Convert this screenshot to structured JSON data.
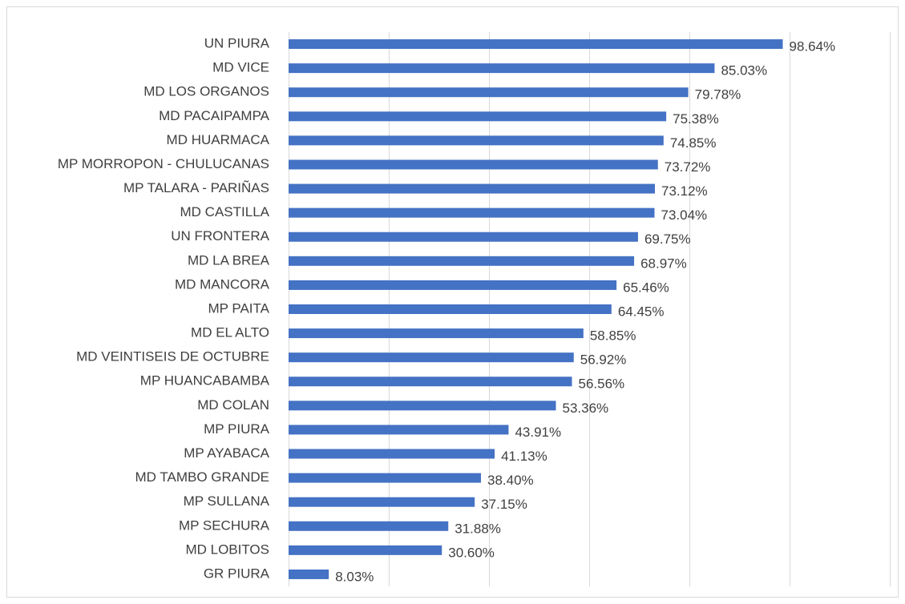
{
  "chart_data": {
    "type": "bar",
    "orientation": "horizontal",
    "categories": [
      "UN PIURA",
      "MD VICE",
      "MD LOS ORGANOS",
      "MD PACAIPAMPA",
      "MD HUARMACA",
      "MP MORROPON - CHULUCANAS",
      "MP TALARA - PARIÑAS",
      "MD CASTILLA",
      "UN FRONTERA",
      "MD LA BREA",
      "MD MANCORA",
      "MP PAITA",
      "MD EL ALTO",
      "MD VEINTISEIS DE OCTUBRE",
      "MP HUANCABAMBA",
      "MD COLAN",
      "MP PIURA",
      "MP AYABACA",
      "MD TAMBO GRANDE",
      "MP SULLANA",
      "MP SECHURA",
      "MD LOBITOS",
      "GR PIURA"
    ],
    "values": [
      98.64,
      85.03,
      79.78,
      75.38,
      74.85,
      73.72,
      73.12,
      73.04,
      69.75,
      68.97,
      65.46,
      64.45,
      58.85,
      56.92,
      56.56,
      53.36,
      43.91,
      41.13,
      38.4,
      37.15,
      31.88,
      30.6,
      8.03
    ],
    "value_labels": [
      "98.64%",
      "85.03%",
      "79.78%",
      "75.38%",
      "74.85%",
      "73.72%",
      "73.12%",
      "73.04%",
      "69.75%",
      "68.97%",
      "65.46%",
      "64.45%",
      "58.85%",
      "56.92%",
      "56.56%",
      "53.36%",
      "43.91%",
      "41.13%",
      "38.40%",
      "37.15%",
      "31.88%",
      "30.60%",
      "8.03%"
    ],
    "color": "#4472c4",
    "xlim": [
      0,
      120
    ],
    "xticks": [
      0,
      20,
      40,
      60,
      80,
      100,
      120
    ],
    "grid": true
  }
}
